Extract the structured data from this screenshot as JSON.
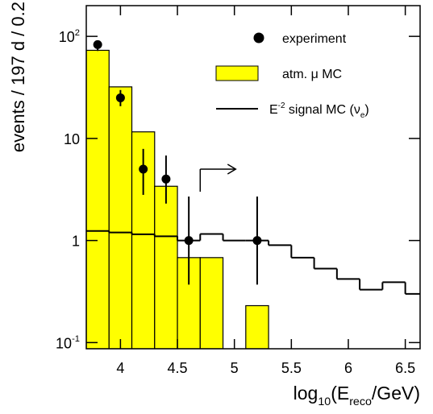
{
  "chart_data": {
    "type": "histogram",
    "y_label": "events / 197 d / 0.2",
    "x_label": [
      {
        "t": "log"
      },
      {
        "t": "10",
        "s": "sub"
      },
      {
        "t": "(E"
      },
      {
        "t": "reco",
        "s": "sub"
      },
      {
        "t": "/GeV)"
      }
    ],
    "xlim": [
      3.7,
      6.63
    ],
    "ylim": [
      0.087,
      200
    ],
    "log_y": true,
    "xticks": [
      4,
      4.5,
      5,
      5.5,
      6,
      6.5
    ],
    "yticks": [
      {
        "value": 0.1,
        "label": [
          {
            "t": "10"
          },
          {
            "t": "-1",
            "s": "sup"
          }
        ]
      },
      1,
      10,
      {
        "value": 100,
        "label": [
          {
            "t": "10"
          },
          {
            "t": "2",
            "s": "sup"
          }
        ]
      }
    ],
    "bins": [
      3.7,
      3.9,
      4.1,
      4.3,
      4.5,
      4.7,
      4.9,
      5.1,
      5.3,
      5.5,
      5.7,
      5.9,
      6.1,
      6.3,
      6.5,
      6.7
    ],
    "series": [
      {
        "name": [
          {
            "t": "atm. μ MC"
          }
        ],
        "style": "filled",
        "color": "#ffff00",
        "values": [
          73,
          32,
          11.6,
          3.4,
          0.68,
          0.68,
          null,
          0.23,
          null,
          null,
          null,
          null,
          null,
          null,
          null
        ]
      },
      {
        "name": [
          {
            "t": "E"
          },
          {
            "t": "-2",
            "s": "sup"
          },
          {
            "t": " signal MC (ν"
          },
          {
            "t": "e",
            "s": "sub"
          },
          {
            "t": ")"
          }
        ],
        "style": "step",
        "color": "#000000",
        "values": [
          1.24,
          1.2,
          1.15,
          1.1,
          1.0,
          1.16,
          1.0,
          1.0,
          0.9,
          0.68,
          0.53,
          0.42,
          0.33,
          0.39,
          0.3
        ]
      },
      {
        "name": [
          {
            "t": "experiment"
          }
        ],
        "style": "points",
        "color": "#000000",
        "x": [
          3.8,
          4.0,
          4.2,
          4.4,
          4.6,
          5.2
        ],
        "values": [
          83,
          25,
          5,
          4,
          1,
          1
        ],
        "lower": [
          72,
          20.7,
          2.8,
          2.3,
          0.37,
          0.37
        ],
        "upper": [
          89,
          29.8,
          7.9,
          6.8,
          2.7,
          2.7
        ]
      }
    ],
    "cut_x": 4.7
  }
}
